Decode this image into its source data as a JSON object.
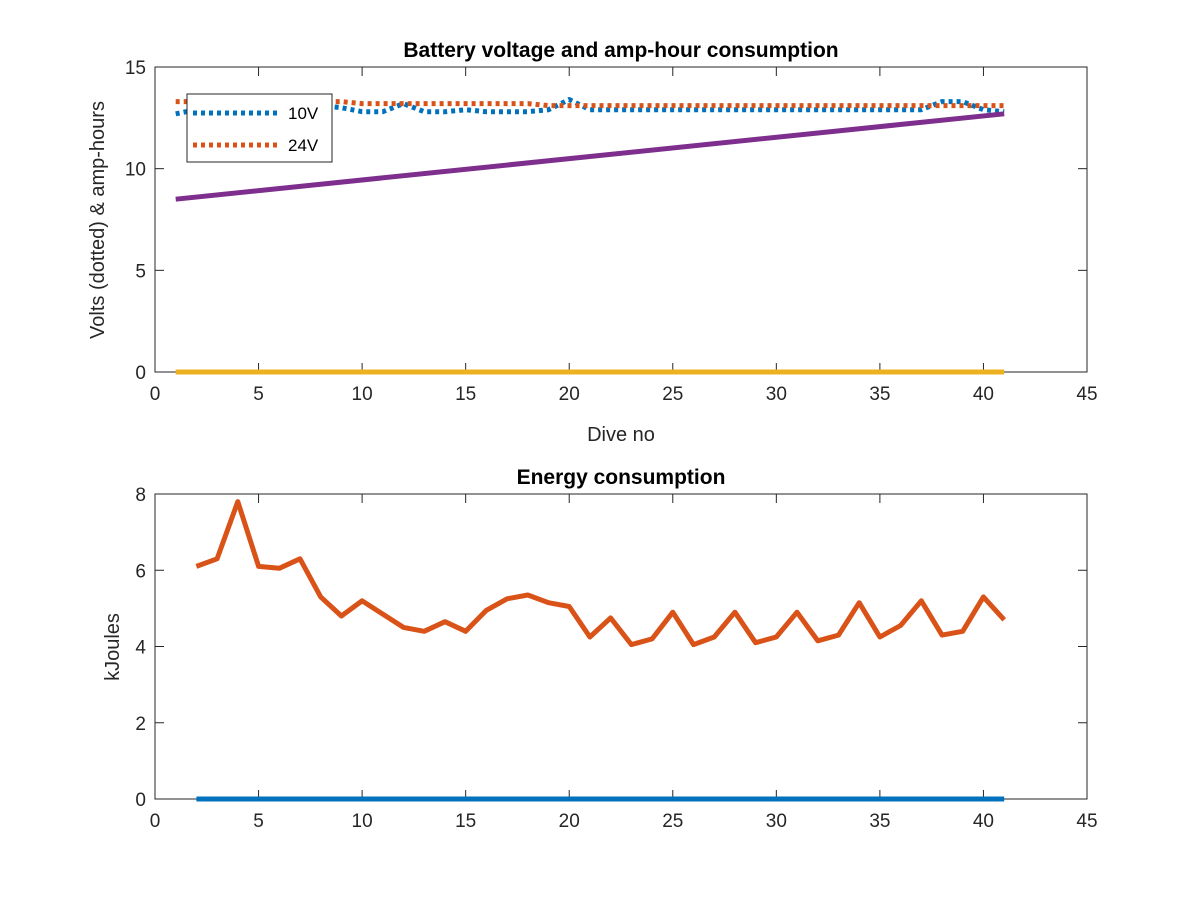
{
  "chart_data": [
    {
      "type": "line",
      "title": "Battery voltage and amp-hour consumption",
      "xlabel": "Dive no",
      "ylabel": "Volts (dotted) & amp-hours",
      "xlim": [
        0,
        45
      ],
      "ylim": [
        0,
        15
      ],
      "xticks": [
        0,
        5,
        10,
        15,
        20,
        25,
        30,
        35,
        40,
        45
      ],
      "yticks": [
        0,
        5,
        10,
        15
      ],
      "grid": false,
      "legend": {
        "placement": "top-left",
        "entries": [
          "10V",
          "24V"
        ]
      },
      "series": [
        {
          "name": "10V",
          "style": "dotted",
          "color": "#0072BD",
          "x": [
            1,
            2,
            3,
            4,
            5,
            6,
            7,
            8,
            9,
            10,
            11,
            12,
            13,
            14,
            15,
            16,
            17,
            18,
            19,
            20,
            21,
            22,
            23,
            24,
            25,
            26,
            27,
            28,
            29,
            30,
            31,
            32,
            33,
            34,
            35,
            36,
            37,
            38,
            39,
            40,
            41
          ],
          "y": [
            12.7,
            12.9,
            13.0,
            12.9,
            13.0,
            12.9,
            13.0,
            13.1,
            13.0,
            12.8,
            12.8,
            13.2,
            12.8,
            12.8,
            12.9,
            12.8,
            12.8,
            12.8,
            12.9,
            13.4,
            12.9,
            12.9,
            12.9,
            12.9,
            12.9,
            12.9,
            12.9,
            12.9,
            12.9,
            12.9,
            12.9,
            12.9,
            12.9,
            12.9,
            12.9,
            12.9,
            12.9,
            13.3,
            13.3,
            12.9,
            12.8
          ]
        },
        {
          "name": "24V",
          "style": "dotted",
          "color": "#D95319",
          "x": [
            1,
            2,
            3,
            4,
            5,
            6,
            7,
            8,
            9,
            10,
            11,
            12,
            13,
            14,
            15,
            16,
            17,
            18,
            19,
            20,
            21,
            22,
            23,
            24,
            25,
            26,
            27,
            28,
            29,
            30,
            31,
            32,
            33,
            34,
            35,
            36,
            37,
            38,
            39,
            40,
            41
          ],
          "y": [
            13.3,
            13.3,
            13.3,
            13.3,
            13.3,
            13.3,
            13.3,
            13.3,
            13.3,
            13.2,
            13.2,
            13.2,
            13.2,
            13.2,
            13.2,
            13.2,
            13.2,
            13.2,
            13.1,
            13.1,
            13.1,
            13.1,
            13.1,
            13.1,
            13.1,
            13.1,
            13.1,
            13.1,
            13.1,
            13.1,
            13.1,
            13.1,
            13.1,
            13.1,
            13.1,
            13.1,
            13.1,
            13.1,
            13.1,
            13.1,
            13.1
          ]
        },
        {
          "style": "solid",
          "color": "#7E2F8E",
          "x": [
            1,
            41
          ],
          "y": [
            8.5,
            12.7
          ]
        },
        {
          "style": "solid",
          "color": "#EDB120",
          "x": [
            1,
            41
          ],
          "y": [
            0,
            0
          ]
        }
      ]
    },
    {
      "type": "line",
      "title": "Energy consumption",
      "xlabel": "",
      "ylabel": "kJoules",
      "xlim": [
        0,
        45
      ],
      "ylim": [
        0,
        8
      ],
      "xticks": [
        0,
        5,
        10,
        15,
        20,
        25,
        30,
        35,
        40,
        45
      ],
      "yticks": [
        0,
        2,
        4,
        6,
        8
      ],
      "grid": false,
      "series": [
        {
          "style": "solid",
          "color": "#D95319",
          "x": [
            2,
            3,
            4,
            5,
            6,
            7,
            8,
            9,
            10,
            11,
            12,
            13,
            14,
            15,
            16,
            17,
            18,
            19,
            20,
            21,
            22,
            23,
            24,
            25,
            26,
            27,
            28,
            29,
            30,
            31,
            32,
            33,
            34,
            35,
            36,
            37,
            38,
            39,
            40,
            41
          ],
          "y": [
            6.1,
            6.3,
            7.8,
            6.1,
            6.05,
            6.3,
            5.3,
            4.8,
            5.2,
            4.85,
            4.5,
            4.4,
            4.65,
            4.4,
            4.95,
            5.25,
            5.35,
            5.15,
            5.05,
            4.25,
            4.75,
            4.05,
            4.2,
            4.9,
            4.05,
            4.25,
            4.9,
            4.1,
            4.25,
            4.9,
            4.15,
            4.3,
            5.15,
            4.25,
            4.55,
            5.2,
            4.3,
            4.4,
            5.3,
            4.7
          ]
        },
        {
          "style": "solid",
          "color": "#0072BD",
          "x": [
            2,
            41
          ],
          "y": [
            0,
            0
          ]
        }
      ]
    }
  ]
}
